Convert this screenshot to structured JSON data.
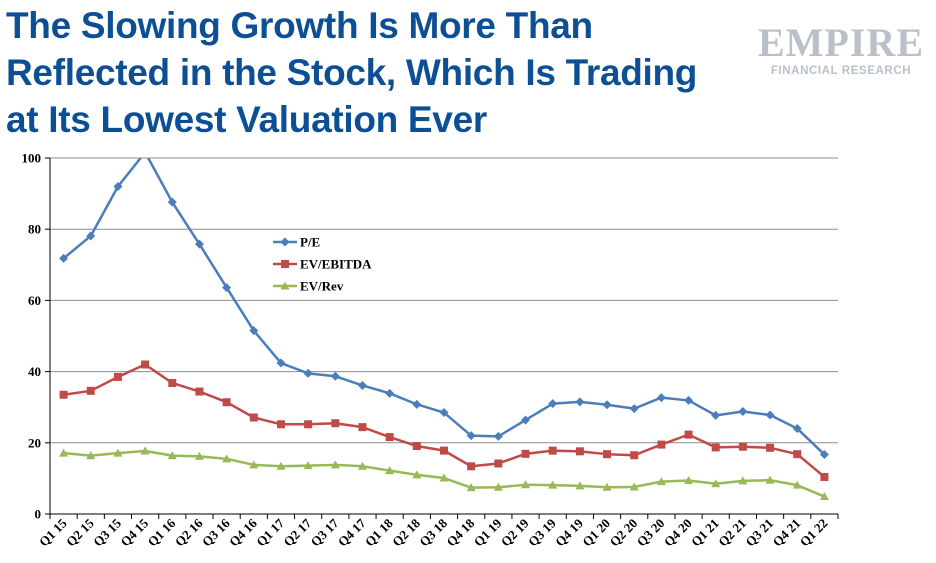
{
  "header": {
    "title_lines": [
      "The Slowing Growth Is More Than",
      "Reflected in the Stock, Which Is Trading",
      "at Its Lowest Valuation Ever"
    ]
  },
  "logo": {
    "main": "EMPIRE",
    "sub": "FINANCIAL RESEARCH"
  },
  "colors": {
    "title": "#0d4f94",
    "pe": "#4a7ebb",
    "ev_ebitda": "#be4b48",
    "ev_rev": "#98b954",
    "grid": "#8c8c8c"
  },
  "chart_data": {
    "type": "line",
    "title": "",
    "xlabel": "",
    "ylabel": "",
    "ylim": [
      0,
      100
    ],
    "yticks": [
      0,
      20,
      40,
      60,
      80,
      100
    ],
    "grid": "horizontal",
    "legend_position": "upper-center",
    "categories": [
      "Q1 15",
      "Q2 15",
      "Q3 15",
      "Q4 15",
      "Q1 16",
      "Q2 16",
      "Q3 16",
      "Q4 16",
      "Q1 17",
      "Q2 17",
      "Q3 17",
      "Q4 17",
      "Q1 18",
      "Q2 18",
      "Q3 18",
      "Q4 18",
      "Q1 19",
      "Q2 19",
      "Q3 19",
      "Q4 19",
      "Q1 20",
      "Q2 20",
      "Q3 20",
      "Q4 20",
      "Q1 21",
      "Q2 21",
      "Q3 21",
      "Q4 21",
      "Q1 22"
    ],
    "series": [
      {
        "name": "P/E",
        "color": "#4a7ebb",
        "marker": "diamond",
        "values": [
          71.8,
          78.1,
          92.0,
          101.6,
          87.6,
          75.8,
          63.6,
          51.5,
          42.4,
          39.5,
          38.7,
          36.1,
          33.9,
          30.8,
          28.5,
          22.0,
          21.8,
          26.4,
          31.0,
          31.5,
          30.7,
          29.6,
          32.7,
          31.9,
          27.7,
          28.8,
          27.8,
          24.0,
          16.7
        ]
      },
      {
        "name": "EV/EBITDA",
        "color": "#be4b48",
        "marker": "square",
        "values": [
          33.5,
          34.6,
          38.5,
          42.0,
          36.8,
          34.4,
          31.4,
          27.1,
          25.2,
          25.2,
          25.5,
          24.4,
          21.6,
          19.1,
          17.8,
          13.4,
          14.2,
          16.9,
          17.8,
          17.6,
          16.8,
          16.5,
          19.5,
          22.3,
          18.7,
          18.9,
          18.6,
          16.8,
          10.4
        ]
      },
      {
        "name": "EV/Rev",
        "color": "#98b954",
        "marker": "triangle",
        "values": [
          17.1,
          16.4,
          17.1,
          17.7,
          16.4,
          16.2,
          15.5,
          13.8,
          13.4,
          13.6,
          13.8,
          13.4,
          12.2,
          11.0,
          10.1,
          7.4,
          7.5,
          8.2,
          8.1,
          7.9,
          7.5,
          7.6,
          9.1,
          9.4,
          8.5,
          9.3,
          9.5,
          8.1,
          4.9
        ]
      }
    ]
  }
}
